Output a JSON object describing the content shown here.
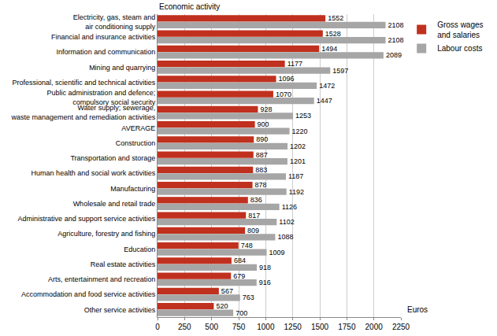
{
  "chart_data": {
    "type": "bar",
    "orientation": "horizontal",
    "y_label": "Economic activity",
    "x_label": "Euros",
    "categories": [
      "Electricity, gas, steam and\nair conditioning supply",
      "Financial and insurance activities",
      "Information and communication",
      "Mining and quarrying",
      "Professional, scientific and technical activities",
      "Public administration and defence;\ncompulsory social security",
      "Water supply; sewerage,\nwaste management and remediation activities",
      "AVERAGE",
      "Construction",
      "Transportation and storage",
      "Human health and social work activities",
      "Manufacturing",
      "Wholesale and retail trade",
      "Administrative and support service activities",
      "Agriculture, forestry and fishing",
      "Education",
      "Real estate activities",
      "Arts, entertainment and recreation",
      "Accommodation and food service activities",
      "Other service activities"
    ],
    "series": [
      {
        "name": "Gross wages\nand salaries",
        "color": "#c0301e",
        "values": [
          1552,
          1528,
          1494,
          1177,
          1096,
          1070,
          928,
          900,
          890,
          887,
          883,
          878,
          836,
          817,
          809,
          748,
          684,
          679,
          567,
          520
        ]
      },
      {
        "name": "Labour costs",
        "color": "#a6a6a6",
        "values": [
          2108,
          2108,
          2089,
          1597,
          1472,
          1447,
          1253,
          1220,
          1202,
          1201,
          1187,
          1192,
          1126,
          1102,
          1088,
          1009,
          918,
          916,
          763,
          700
        ]
      }
    ],
    "xlim": [
      0,
      2250
    ],
    "xticks": [
      0,
      250,
      500,
      750,
      1000,
      1250,
      1500,
      1750,
      2000,
      2250
    ],
    "grid": true,
    "data_labels": true,
    "legend": "top right"
  }
}
